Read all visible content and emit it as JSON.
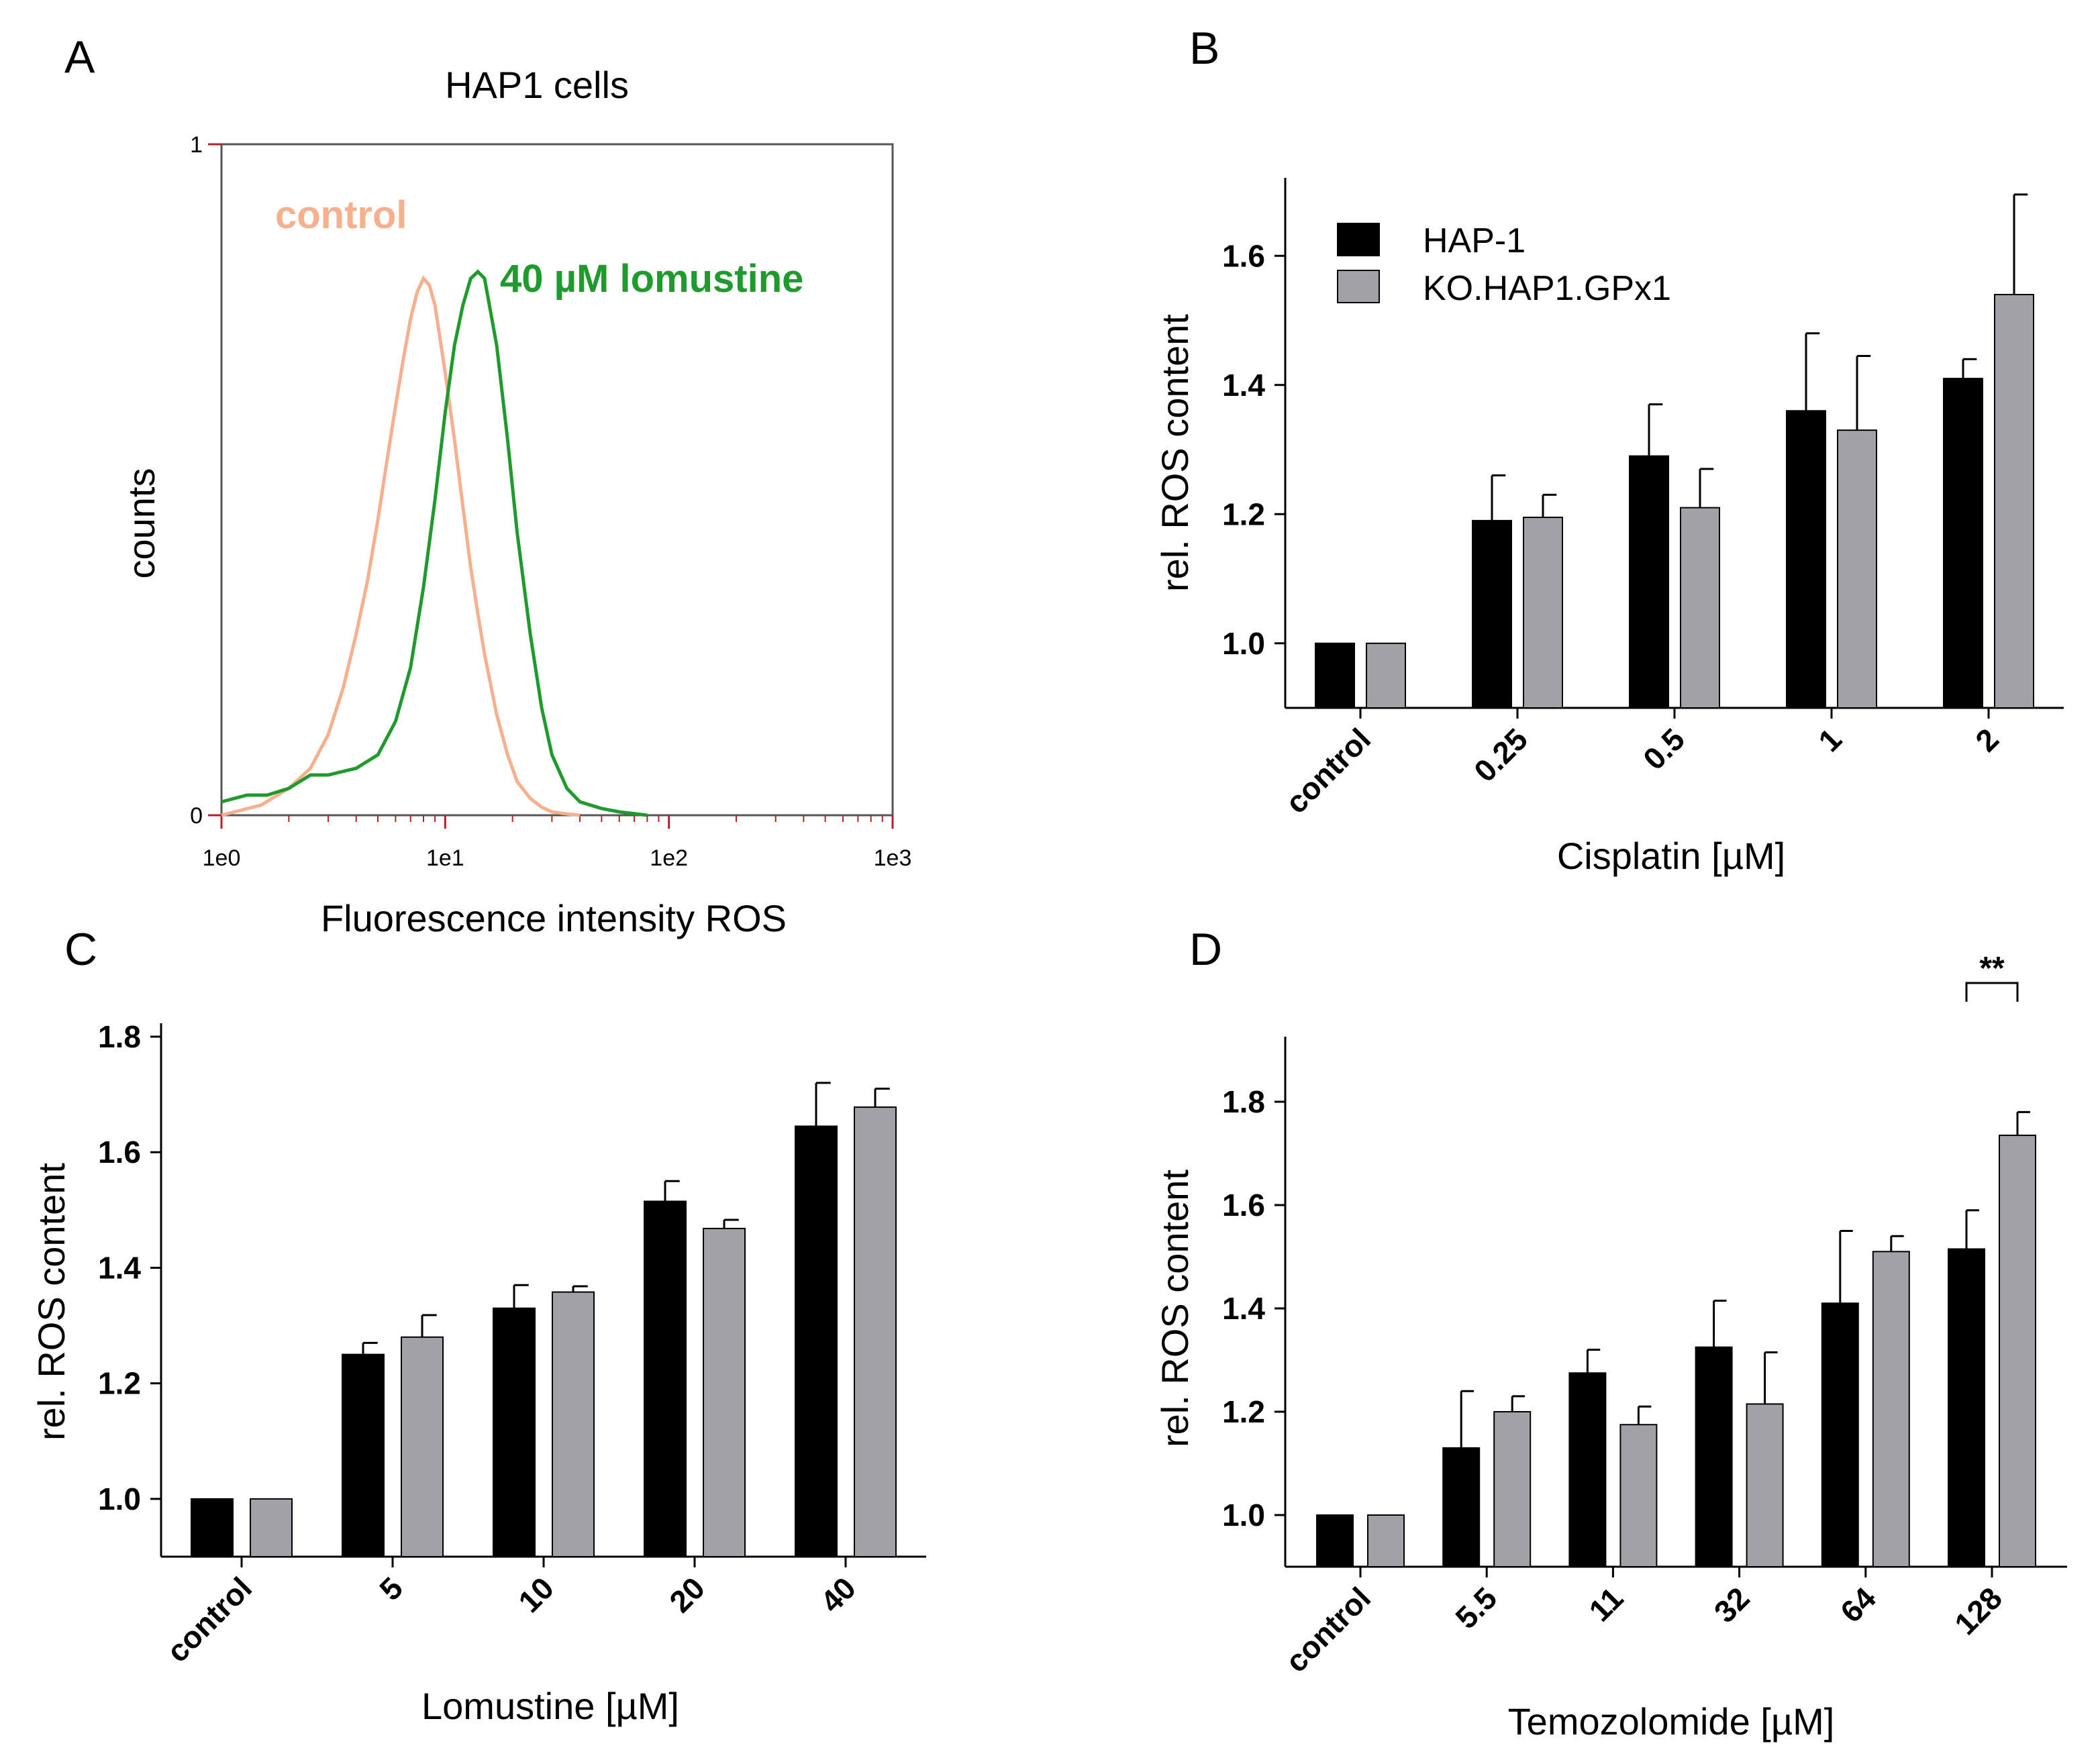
{
  "colors": {
    "hap1": "#000000",
    "ko": "#a3a1a8",
    "control_curve": "#f7b08e",
    "lomustine_curve": "#1f9a2c",
    "histo_axis": "#b4202a"
  },
  "legend": [
    "HAP-1",
    "KO.HAP1.GPx1"
  ],
  "chart_data": [
    {
      "panel": "A",
      "type": "line",
      "title": "HAP1 cells",
      "xlabel": "Fluorescence intensity ROS",
      "ylabel": "counts",
      "xscale": "log",
      "xticks": [
        "1e0",
        "1e1",
        "1e2",
        "1e3"
      ],
      "yticks": [
        "0",
        "1"
      ],
      "ylim": [
        0,
        1
      ],
      "series": [
        {
          "name": "control",
          "x": [
            1,
            1.5,
            2,
            2.5,
            3,
            3.5,
            4,
            4.5,
            5,
            5.5,
            6,
            6.5,
            7,
            7.5,
            8,
            8.5,
            9,
            10,
            11,
            12,
            13,
            14,
            15,
            17,
            19,
            21,
            24,
            27,
            30,
            35,
            40
          ],
          "y": [
            0,
            0.015,
            0.04,
            0.07,
            0.12,
            0.19,
            0.27,
            0.35,
            0.44,
            0.53,
            0.61,
            0.68,
            0.74,
            0.78,
            0.8,
            0.79,
            0.76,
            0.66,
            0.56,
            0.46,
            0.37,
            0.3,
            0.24,
            0.15,
            0.09,
            0.05,
            0.025,
            0.012,
            0.005,
            0.002,
            0
          ]
        },
        {
          "name": "40 µM lomustine",
          "x": [
            1,
            1.3,
            1.6,
            2,
            2.5,
            3,
            4,
            5,
            6,
            7,
            8,
            9,
            10,
            11,
            12,
            13,
            14,
            15,
            17,
            19,
            21,
            24,
            27,
            30,
            35,
            40,
            50,
            60,
            80
          ],
          "y": [
            0.02,
            0.03,
            0.03,
            0.04,
            0.06,
            0.06,
            0.07,
            0.09,
            0.14,
            0.22,
            0.34,
            0.47,
            0.6,
            0.7,
            0.76,
            0.8,
            0.81,
            0.8,
            0.7,
            0.56,
            0.42,
            0.27,
            0.16,
            0.09,
            0.04,
            0.02,
            0.01,
            0.005,
            0
          ]
        }
      ]
    },
    {
      "panel": "B",
      "type": "bar",
      "xlabel": "Cisplatin [µM]",
      "ylabel": "rel. ROS content",
      "categories": [
        "control",
        "0.25",
        "0.5",
        "1",
        "2"
      ],
      "yticks": [
        "1.0",
        "1.2",
        "1.4",
        "1.6"
      ],
      "ylim": [
        0.9,
        1.7
      ],
      "series": [
        {
          "name": "HAP-1",
          "values": [
            1.0,
            1.19,
            1.29,
            1.36,
            1.41
          ],
          "errors": [
            0,
            0.07,
            0.08,
            0.12,
            0.03
          ]
        },
        {
          "name": "KO.HAP1.GPx1",
          "values": [
            1.0,
            1.195,
            1.21,
            1.33,
            1.54
          ],
          "errors": [
            0,
            0.035,
            0.06,
            0.115,
            0.155
          ]
        }
      ]
    },
    {
      "panel": "C",
      "type": "bar",
      "xlabel": "Lomustine [µM]",
      "ylabel": "rel. ROS content",
      "categories": [
        "control",
        "5",
        "10",
        "20",
        "40"
      ],
      "yticks": [
        "1.0",
        "1.2",
        "1.4",
        "1.6",
        "1.8"
      ],
      "ylim": [
        0.9,
        1.8
      ],
      "series": [
        {
          "name": "HAP-1",
          "values": [
            1.0,
            1.25,
            1.33,
            1.515,
            1.645
          ],
          "errors": [
            0,
            0.02,
            0.04,
            0.035,
            0.075
          ]
        },
        {
          "name": "KO.HAP1.GPx1",
          "values": [
            1.0,
            1.28,
            1.358,
            1.468,
            1.678
          ],
          "errors": [
            0,
            0.038,
            0.01,
            0.015,
            0.032
          ]
        }
      ]
    },
    {
      "panel": "D",
      "type": "bar",
      "xlabel": "Temozolomide [µM]",
      "ylabel": "rel. ROS content",
      "categories": [
        "control",
        "5.5",
        "11",
        "32",
        "64",
        "128"
      ],
      "yticks": [
        "1.0",
        "1.2",
        "1.4",
        "1.6",
        "1.8"
      ],
      "ylim": [
        0.9,
        1.9
      ],
      "series": [
        {
          "name": "HAP-1",
          "values": [
            1.0,
            1.13,
            1.275,
            1.325,
            1.41,
            1.515
          ],
          "errors": [
            0,
            0.11,
            0.045,
            0.09,
            0.14,
            0.075
          ]
        },
        {
          "name": "KO.HAP1.GPx1",
          "values": [
            1.0,
            1.2,
            1.175,
            1.215,
            1.51,
            1.735
          ],
          "errors": [
            0,
            0.03,
            0.035,
            0.1,
            0.03,
            0.045
          ]
        }
      ],
      "annotations": [
        {
          "category": "128",
          "text": "**"
        }
      ]
    }
  ]
}
